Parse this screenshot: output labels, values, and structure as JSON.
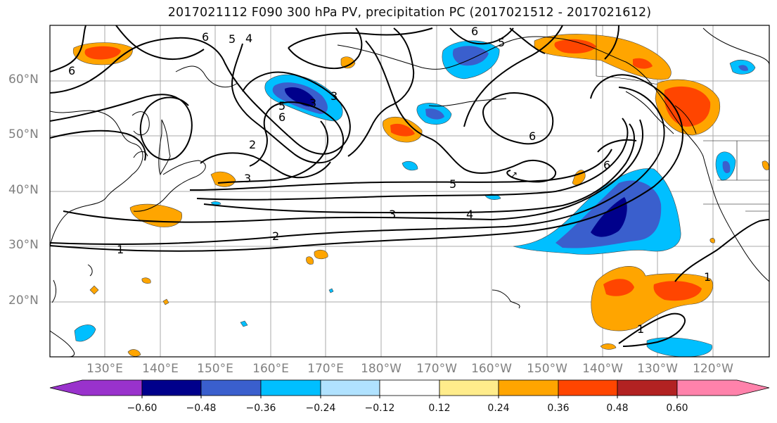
{
  "title": "2017021112 F090 300 hPa PV, precipitation PC (2017021512 - 2017021612)",
  "map": {
    "lat_labels": [
      "60°N",
      "50°N",
      "40°N",
      "30°N",
      "20°N"
    ],
    "lon_labels": [
      "130°E",
      "140°E",
      "150°E",
      "160°E",
      "170°E",
      "180°W",
      "170°W",
      "160°W",
      "150°W",
      "140°W",
      "130°W",
      "120°W"
    ],
    "contour_labels": [
      "6",
      "5",
      "4",
      "6",
      "5",
      "6",
      "3",
      "5",
      "3",
      "2",
      "3",
      "6",
      "6",
      "5",
      "3",
      "4",
      "2",
      "1",
      "1",
      "1"
    ]
  },
  "colorbar": {
    "tick_labels": [
      "−0.60",
      "−0.48",
      "−0.36",
      "−0.24",
      "−0.12",
      "0.12",
      "0.24",
      "0.36",
      "0.48",
      "0.60"
    ],
    "colors": [
      "#9932CC",
      "#00008B",
      "#3A5FCD",
      "#00BFFF",
      "#B0E2FF",
      "#FFFFFF",
      "#FFEC8B",
      "#FFA500",
      "#FF4500",
      "#B22222",
      "#FF82AB"
    ]
  }
}
